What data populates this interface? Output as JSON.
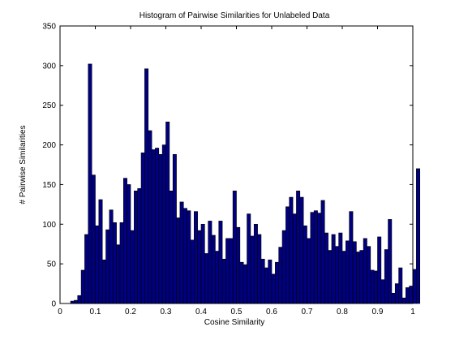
{
  "chart_data": {
    "type": "bar",
    "title": "Histogram of Pairwise Similarities for Unlabeled Data",
    "xlabel": "Cosine Similarity",
    "ylabel": "# Pairwise Similarities",
    "xlim": [
      0,
      1
    ],
    "ylim": [
      0,
      350
    ],
    "xticks": [
      "0",
      "0.1",
      "0.2",
      "0.3",
      "0.4",
      "0.5",
      "0.6",
      "0.7",
      "0.8",
      "0.9",
      "1"
    ],
    "yticks": [
      "0",
      "50",
      "100",
      "150",
      "200",
      "250",
      "300",
      "350"
    ],
    "grid": false,
    "bar_color": "#000080",
    "edge_color": "#000000",
    "bin_start": 0.03,
    "bin_width": 0.01,
    "values": [
      3,
      4,
      10,
      42,
      87,
      302,
      162,
      98,
      131,
      55,
      93,
      118,
      102,
      74,
      102,
      158,
      150,
      92,
      142,
      145,
      190,
      296,
      218,
      194,
      196,
      188,
      200,
      229,
      142,
      188,
      108,
      128,
      120,
      117,
      80,
      116,
      92,
      100,
      63,
      104,
      86,
      66,
      104,
      56,
      82,
      82,
      142,
      96,
      52,
      49,
      113,
      85,
      100,
      87,
      56,
      45,
      55,
      37,
      52,
      71,
      92,
      122,
      134,
      113,
      142,
      134,
      98,
      82,
      115,
      117,
      114,
      130,
      89,
      67,
      87,
      72,
      89,
      66,
      79,
      116,
      78,
      65,
      67,
      82,
      72,
      42,
      41,
      84,
      30,
      68,
      106,
      13,
      25,
      45,
      7,
      20,
      22,
      43,
      170
    ]
  }
}
